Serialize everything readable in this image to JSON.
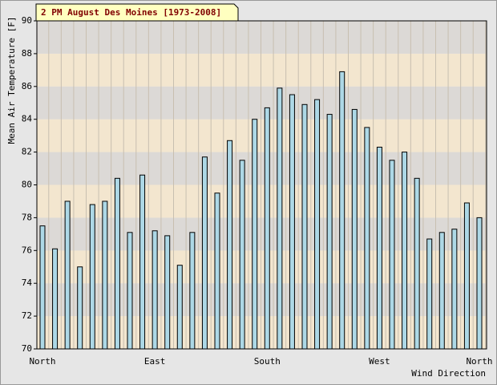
{
  "chart_data": {
    "type": "bar",
    "title": "2 PM August Des Moines [1973-2008]",
    "y_label": "Mean Air Temperature [F]",
    "x_label": "Wind Direction",
    "categories": [
      "North",
      null,
      null,
      null,
      null,
      null,
      null,
      null,
      null,
      "East",
      null,
      null,
      null,
      null,
      null,
      null,
      null,
      null,
      "South",
      null,
      null,
      null,
      null,
      null,
      null,
      null,
      null,
      "West",
      null,
      null,
      null,
      null,
      null,
      null,
      null,
      "North"
    ],
    "values": [
      77.5,
      76.1,
      79.0,
      75.0,
      78.8,
      79.0,
      80.4,
      77.1,
      80.6,
      77.2,
      76.9,
      75.1,
      77.1,
      81.7,
      79.5,
      82.7,
      81.5,
      84.0,
      84.7,
      85.9,
      85.5,
      84.9,
      85.2,
      84.3,
      86.9,
      84.6,
      83.5,
      82.3,
      81.5,
      82.0,
      80.4,
      76.7,
      77.1,
      77.3,
      78.9,
      78.0
    ],
    "color": "#add8e6",
    "ylim": [
      70,
      90
    ],
    "yticks": [
      70,
      72,
      74,
      76,
      78,
      80,
      82,
      84,
      86,
      88,
      90
    ],
    "stripe_colors": [
      "#f3e6cf",
      "#dcd9d6"
    ],
    "grid": true
  }
}
